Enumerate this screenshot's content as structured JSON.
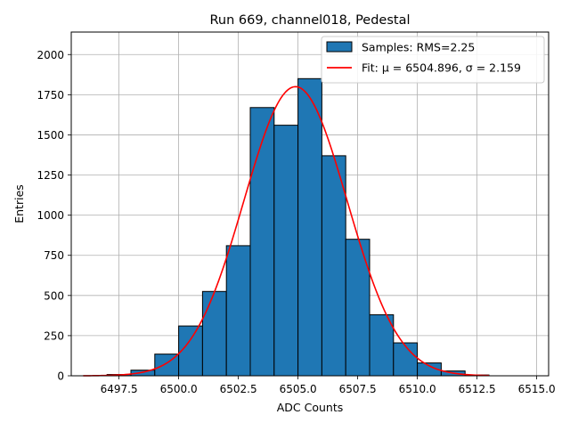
{
  "chart_data": {
    "type": "bar",
    "title": "Run 669, channel018, Pedestal",
    "xlabel": "ADC Counts",
    "ylabel": "Entries",
    "xlim": [
      6495.5,
      6515.5
    ],
    "ylim": [
      0,
      2140
    ],
    "xticks": [
      6497.5,
      6500.0,
      6502.5,
      6505.0,
      6507.5,
      6510.0,
      6512.5,
      6515.0
    ],
    "xtick_labels": [
      "6497.5",
      "6500.0",
      "6502.5",
      "6505.0",
      "6507.5",
      "6510.0",
      "6512.5",
      "6515.0"
    ],
    "yticks": [
      0,
      250,
      500,
      750,
      1000,
      1250,
      1500,
      1750,
      2000
    ],
    "ytick_labels": [
      "0",
      "250",
      "500",
      "750",
      "1000",
      "1250",
      "1500",
      "1750",
      "2000"
    ],
    "grid": true,
    "legend_position": "top-right",
    "histogram": {
      "name": "Samples: RMS=2.25",
      "color": "#1f77b4",
      "edge_color": "#000000",
      "bins": [
        {
          "x0": 6497.0,
          "x1": 6498.0,
          "value": 8
        },
        {
          "x0": 6498.0,
          "x1": 6499.0,
          "value": 35
        },
        {
          "x0": 6499.0,
          "x1": 6500.0,
          "value": 135
        },
        {
          "x0": 6500.0,
          "x1": 6501.0,
          "value": 310
        },
        {
          "x0": 6501.0,
          "x1": 6502.0,
          "value": 525
        },
        {
          "x0": 6502.0,
          "x1": 6503.0,
          "value": 810
        },
        {
          "x0": 6503.0,
          "x1": 6504.0,
          "value": 1670
        },
        {
          "x0": 6504.0,
          "x1": 6505.0,
          "value": 1560
        },
        {
          "x0": 6505.0,
          "x1": 6506.0,
          "value": 1850
        },
        {
          "x0": 6506.0,
          "x1": 6507.0,
          "value": 1370
        },
        {
          "x0": 6507.0,
          "x1": 6508.0,
          "value": 850
        },
        {
          "x0": 6508.0,
          "x1": 6509.0,
          "value": 380
        },
        {
          "x0": 6509.0,
          "x1": 6510.0,
          "value": 205
        },
        {
          "x0": 6510.0,
          "x1": 6511.0,
          "value": 80
        },
        {
          "x0": 6511.0,
          "x1": 6512.0,
          "value": 30
        },
        {
          "x0": 6512.0,
          "x1": 6513.0,
          "value": 5
        }
      ]
    },
    "fit": {
      "name": "Fit: μ = 6504.896, σ = 2.159",
      "color": "#ff0000",
      "mu": 6504.896,
      "sigma": 2.159,
      "amplitude": 1800,
      "x_range": [
        6496.0,
        6513.0
      ]
    }
  }
}
